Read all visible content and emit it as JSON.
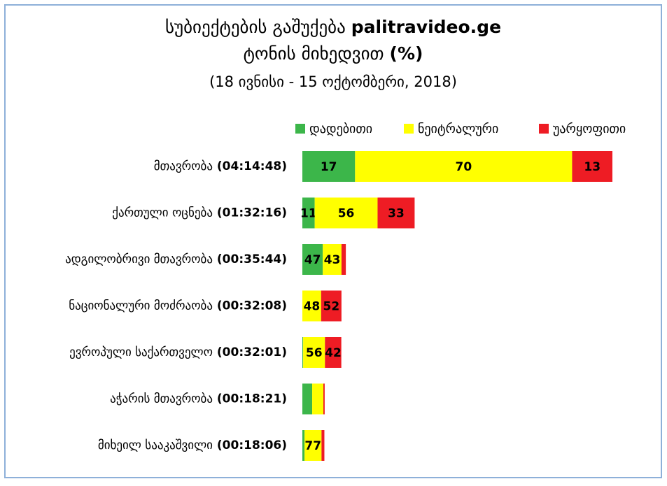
{
  "chart_data": {
    "type": "stacked-bar-horizontal",
    "title": [
      "სუბიექტების გაშუქება palitravideo.ge",
      "ტონის მიხედვით (%)"
    ],
    "subtitle": "(18 ივნისი - 15 ოქტომბერი, 2018)",
    "categories": [
      "მთავრობა (04:14:48)",
      "ქართული ოცნება (01:32:16)",
      "ადგილობრივი მთავრობა (00:35:44)",
      "ნაციონალური მოძრაობა (00:32:08)",
      "ევროპული საქართველო (00:32:01)",
      "აჭარის მთავრობა (00:18:21)",
      "მიხეილ სააკაშვილი (00:18:06)"
    ],
    "series": [
      {
        "name": "დადებითი",
        "color": "#3cb64a",
        "values": [
          17,
          11,
          47,
          0,
          2,
          44,
          10
        ],
        "value_labels": [
          "17",
          "11",
          "47",
          null,
          null,
          null,
          null
        ]
      },
      {
        "name": "ნეიტრალური",
        "color": "#ffff00",
        "values": [
          70,
          56,
          43,
          48,
          56,
          50,
          77
        ],
        "value_labels": [
          "70",
          "56",
          "43",
          "48",
          "56",
          null,
          "77"
        ]
      },
      {
        "name": "უარყოფითი",
        "color": "#ee1c24",
        "values": [
          13,
          33,
          10,
          52,
          42,
          6,
          13
        ],
        "value_labels": [
          "13",
          "33",
          null,
          "52",
          "42",
          null,
          null
        ]
      }
    ],
    "legend": "top-right"
  }
}
